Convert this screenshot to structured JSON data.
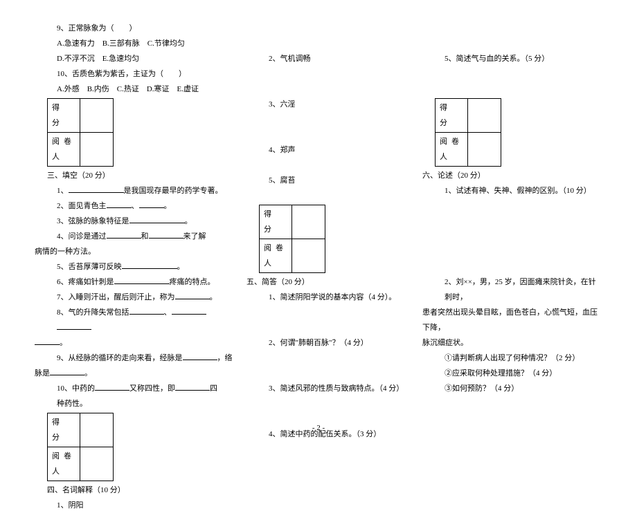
{
  "col1": {
    "q9": "9、正常脉象为（　　）",
    "q9_opts1": "A.急速有力　B.三部有脉　C.节律均匀",
    "q9_opts2": "D.不浮不沉　E.急速均匀",
    "q10": "10、舌质色紫为紫舌，主证为（　　）",
    "q10_opts": "A.外感　B.内伤　C.热证　D.寒证　E.虚证",
    "score_label1": "得　分",
    "score_label2": "阅卷人",
    "sec3": "三、填空（20 分）",
    "f1a": "1、",
    "f1b": "是我国现存最早的药学专著。",
    "f2a": "2、面见青色主",
    "f2b": "、",
    "f2c": "。",
    "f3a": "3、弦脉的脉象特征是",
    "f3b": "。",
    "f4a": "4、问诊是通过",
    "f4b": "和",
    "f4c": "来了解",
    "f4d": "病情的一种方法。",
    "f5a": "5、舌苔厚薄可反映",
    "f5b": "。",
    "f6a": "6、疼痛如针刺是",
    "f6b": "疼痛的特点。",
    "f7a": "7、入睡则汗出，醒后则汗止，称为",
    "f7b": "。",
    "f8a": "8、气的升降失常包括",
    "f8b": "、",
    "f8c": "。",
    "f9a": "9、从经脉的循环的走向来看，经脉是",
    "f9b": "，络",
    "f9c": "脉是",
    "f9d": "。",
    "f10a": "10、中药的",
    "f10b": "又称四性，即",
    "f10c": "四",
    "f10d": "种药性。",
    "sec4": "四、名词解释（10 分）",
    "n1": "1、阴阳"
  },
  "col2": {
    "n2": "2、气机调畅",
    "n3": "3、六淫",
    "n4": "4、郑声",
    "n5": "5、腐苔",
    "score_label1": "得　分",
    "score_label2": "阅卷人",
    "sec5": "五、简答（20 分）",
    "q1": "1、简述阴阳学说的基本内容（4 分）。",
    "q2": "2、何谓\"肺朝百脉\"？（4 分）",
    "q3": "3、简述风邪的性质与致病特点。（4 分）",
    "q4": "4、简述中药的配伍关系。（3 分）"
  },
  "col3": {
    "q5": "5、简述气与血的关系。（5 分）",
    "score_label1": "得　分",
    "score_label2": "阅卷人",
    "sec6": "六、论述（20 分）",
    "d1": "1、试述有神、失神、假神的区别。（10 分）",
    "d2a": "2、刘××，男，25 岁，因面瘫来院针灸，在针刺时，",
    "d2b": "患者突然出现头晕目眩，面色苍白，心慌气短，血压下降，",
    "d2c": "脉沉细症状。",
    "d2_1": "①请判断病人出现了何种情况？（2 分）",
    "d2_2": "②应采取何种处理措施？（4 分）",
    "d2_3": "③如何预防？（4 分）"
  },
  "page": "- 2 -"
}
